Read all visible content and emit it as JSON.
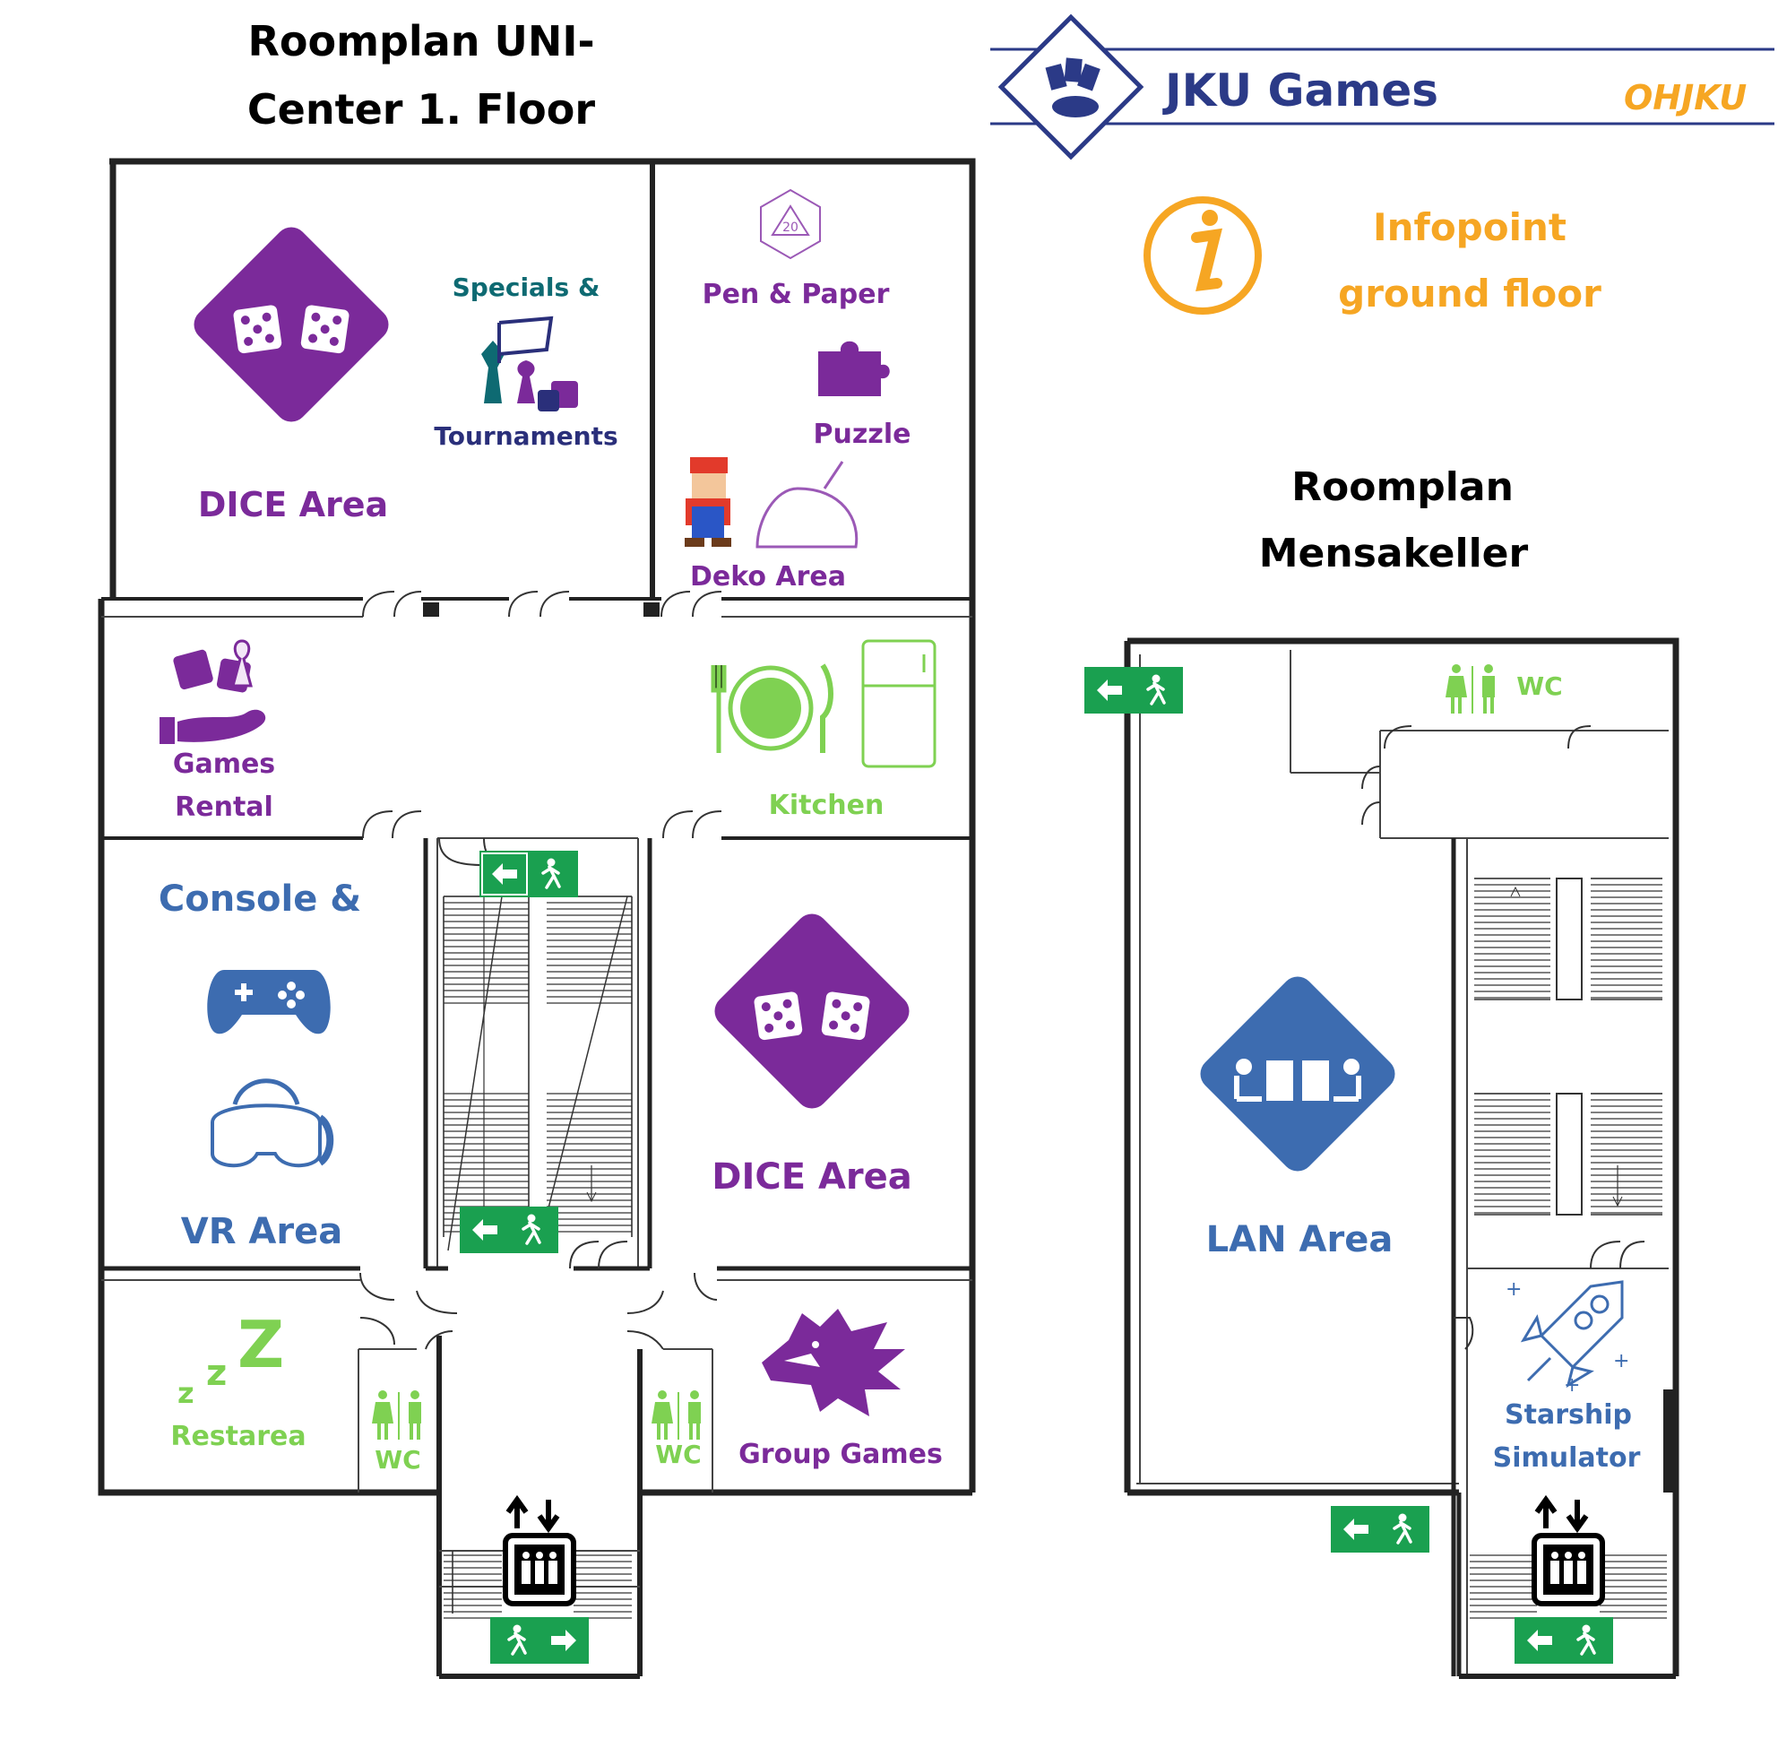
{
  "floor1": {
    "title_line1": "Roomplan UNI-",
    "title_line2": "Center 1. Floor"
  },
  "mensa": {
    "title_line1": "Roomplan",
    "title_line2": "Mensakeller"
  },
  "header": {
    "brand": "JKU Games",
    "oh_logo": "OHJKU"
  },
  "infopoint": {
    "line1": "Infopoint",
    "line2": "ground floor"
  },
  "rooms": {
    "dice_top": "DICE Area",
    "specials_line1": "Specials &",
    "specials_line2": "Tournaments",
    "pen_paper": "Pen & Paper",
    "puzzle": "Puzzle",
    "deko": "Deko Area",
    "games_rental_line1": "Games",
    "games_rental_line2": "Rental",
    "kitchen": "Kitchen",
    "console_line1": "Console &",
    "vr": "VR Area",
    "dice_right": "DICE Area",
    "restarea": "Restarea",
    "wc_left": "WC",
    "wc_right": "WC",
    "group_games": "Group Games",
    "wc_mensa": "WC",
    "lan": "LAN Area",
    "starship_line1": "Starship",
    "starship_line2": "Simulator"
  },
  "icons": {
    "d20_number": "20"
  },
  "colors": {
    "purple": "#7b2a9a",
    "blue": "#3d6cb0",
    "green": "#7fd152",
    "teal": "#0e6a72",
    "navy": "#2a2f7a",
    "orange": "#f6a623",
    "exit_green": "#1aa050",
    "brand_navy": "#2b3a87"
  }
}
